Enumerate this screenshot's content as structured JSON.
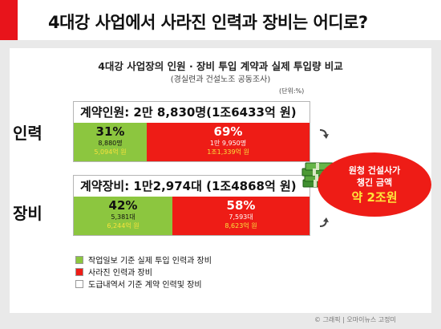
{
  "title": "4대강 사업에서 사라진 인력과 장비는 어디로?",
  "chart_data": {
    "type": "bar",
    "title": "4대강 사업장의 인원 · 장비 투입 계약과 실제 투입량 비교",
    "subtitle": "(경실련과 건설노조 공동조사)",
    "unit_note": "(단위:%)",
    "categories": [
      "인력",
      "장비"
    ],
    "groups": [
      {
        "side_label": "인력",
        "contract_label": "계약인원: 2만 8,830명(1조6433억 원)",
        "segments": [
          {
            "pct": 31,
            "pct_label": "31%",
            "count": "8,880명",
            "amount": "5,094억 원",
            "color": "#8cc63f"
          },
          {
            "pct": 69,
            "pct_label": "69%",
            "count": "1만 9,950명",
            "amount": "1조1,339억 원",
            "color": "#ee1c16"
          }
        ]
      },
      {
        "side_label": "장비",
        "contract_label": "계약장비: 1만2,974대 (1조4868억 원)",
        "segments": [
          {
            "pct": 42,
            "pct_label": "42%",
            "count": "5,381대",
            "amount": "6,244억 원",
            "color": "#8cc63f"
          },
          {
            "pct": 58,
            "pct_label": "58%",
            "count": "7,593대",
            "amount": "8,623억 원",
            "color": "#ee1c16"
          }
        ]
      }
    ],
    "legend": [
      {
        "label": "작업일보 기준 실제 투입 인력과 장비",
        "color": "#8cc63f"
      },
      {
        "label": "사라진 인력과 장비",
        "color": "#ee1c16"
      },
      {
        "label": "도급내역서 기준 계약 인력및 장비",
        "color": "#ffffff"
      }
    ],
    "callout": {
      "line1": "원청 건설사가",
      "line2": "챙긴 금액",
      "line3": "약 2조원"
    }
  },
  "credit": "© 그래픽 | 오마이뉴스 고정미"
}
